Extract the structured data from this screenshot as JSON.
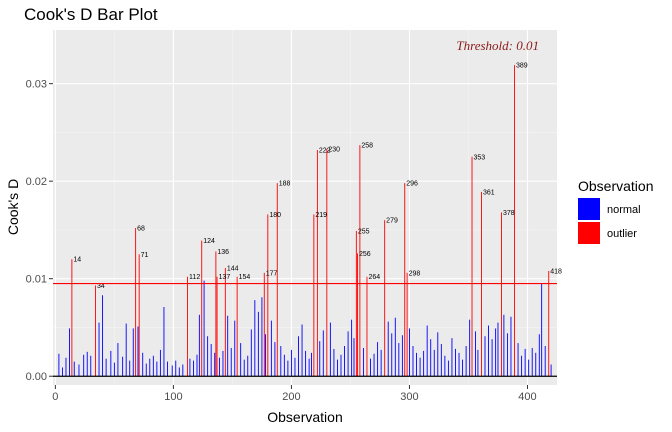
{
  "chart_data": {
    "type": "bar",
    "title": "Cook's D Bar Plot",
    "xlabel": "Observation",
    "ylabel": "Cook's D",
    "xlim": [
      -2,
      425
    ],
    "ylim": [
      -0.0009,
      0.0355
    ],
    "x_ticks": [
      0,
      100,
      200,
      300,
      400
    ],
    "y_ticks": [
      0.0,
      0.01,
      0.02,
      0.03
    ],
    "y_tick_labels": [
      "0.00",
      "0.01",
      "0.02",
      "0.03"
    ],
    "grid": true,
    "threshold": {
      "value": 0.0095,
      "label": "Threshold: 0.01",
      "color": "#ff0000",
      "label_color": "#8b1a1a"
    },
    "legend": {
      "title": "Observation",
      "position": "right",
      "entries": [
        {
          "name": "normal",
          "color": "#0000ff"
        },
        {
          "name": "outlier",
          "color": "#ff0000"
        }
      ]
    },
    "series": [
      {
        "name": "outlier",
        "points": [
          {
            "x": 14,
            "y": 0.012,
            "label": "14"
          },
          {
            "x": 34,
            "y": 0.0093,
            "label": "34"
          },
          {
            "x": 68,
            "y": 0.0152,
            "label": "68"
          },
          {
            "x": 71,
            "y": 0.0125,
            "label": "71"
          },
          {
            "x": 112,
            "y": 0.0102,
            "label": "112"
          },
          {
            "x": 124,
            "y": 0.0139,
            "label": "124"
          },
          {
            "x": 136,
            "y": 0.0128,
            "label": "136"
          },
          {
            "x": 137,
            "y": 0.0102,
            "label": "137"
          },
          {
            "x": 144,
            "y": 0.0111,
            "label": "144"
          },
          {
            "x": 154,
            "y": 0.0102,
            "label": "154"
          },
          {
            "x": 177,
            "y": 0.0106,
            "label": "177"
          },
          {
            "x": 180,
            "y": 0.0166,
            "label": "180"
          },
          {
            "x": 188,
            "y": 0.0198,
            "label": "188"
          },
          {
            "x": 219,
            "y": 0.0166,
            "label": "219"
          },
          {
            "x": 222,
            "y": 0.0232,
            "label": "222"
          },
          {
            "x": 230,
            "y": 0.0233,
            "label": "230"
          },
          {
            "x": 255,
            "y": 0.0149,
            "label": "255"
          },
          {
            "x": 256,
            "y": 0.0126,
            "label": "256"
          },
          {
            "x": 258,
            "y": 0.0237,
            "label": "258"
          },
          {
            "x": 264,
            "y": 0.0102,
            "label": "264"
          },
          {
            "x": 279,
            "y": 0.016,
            "label": "279"
          },
          {
            "x": 296,
            "y": 0.0198,
            "label": "296"
          },
          {
            "x": 298,
            "y": 0.0106,
            "label": "298"
          },
          {
            "x": 353,
            "y": 0.0225,
            "label": "353"
          },
          {
            "x": 361,
            "y": 0.0189,
            "label": "361"
          },
          {
            "x": 378,
            "y": 0.0168,
            "label": "378"
          },
          {
            "x": 389,
            "y": 0.0319,
            "label": "389"
          },
          {
            "x": 418,
            "y": 0.0108,
            "label": "418"
          }
        ]
      },
      {
        "name": "normal",
        "points": [
          {
            "x": 3,
            "y": 0.0023
          },
          {
            "x": 6,
            "y": 0.0009
          },
          {
            "x": 9,
            "y": 0.0019
          },
          {
            "x": 12,
            "y": 0.0049
          },
          {
            "x": 16,
            "y": 0.0015
          },
          {
            "x": 20,
            "y": 0.0012
          },
          {
            "x": 24,
            "y": 0.0022
          },
          {
            "x": 27,
            "y": 0.0025
          },
          {
            "x": 30,
            "y": 0.0021
          },
          {
            "x": 37,
            "y": 0.0055
          },
          {
            "x": 40,
            "y": 0.0083
          },
          {
            "x": 43,
            "y": 0.0018
          },
          {
            "x": 47,
            "y": 0.0026
          },
          {
            "x": 50,
            "y": 0.0014
          },
          {
            "x": 53,
            "y": 0.0034
          },
          {
            "x": 57,
            "y": 0.002
          },
          {
            "x": 60,
            "y": 0.0054
          },
          {
            "x": 63,
            "y": 0.0016
          },
          {
            "x": 66,
            "y": 0.0049
          },
          {
            "x": 70,
            "y": 0.0051
          },
          {
            "x": 74,
            "y": 0.0024
          },
          {
            "x": 77,
            "y": 0.0013
          },
          {
            "x": 80,
            "y": 0.0018
          },
          {
            "x": 83,
            "y": 0.0021
          },
          {
            "x": 86,
            "y": 0.0015
          },
          {
            "x": 89,
            "y": 0.0027
          },
          {
            "x": 92,
            "y": 0.0071
          },
          {
            "x": 95,
            "y": 0.0015
          },
          {
            "x": 99,
            "y": 0.0011
          },
          {
            "x": 102,
            "y": 0.0016
          },
          {
            "x": 105,
            "y": 0.0009
          },
          {
            "x": 108,
            "y": 0.0012
          },
          {
            "x": 114,
            "y": 0.0018
          },
          {
            "x": 117,
            "y": 0.0016
          },
          {
            "x": 120,
            "y": 0.0022
          },
          {
            "x": 122,
            "y": 0.0063
          },
          {
            "x": 126,
            "y": 0.0098
          },
          {
            "x": 129,
            "y": 0.0041
          },
          {
            "x": 132,
            "y": 0.0033
          },
          {
            "x": 135,
            "y": 0.0024
          },
          {
            "x": 139,
            "y": 0.0019
          },
          {
            "x": 142,
            "y": 0.0026
          },
          {
            "x": 146,
            "y": 0.0062
          },
          {
            "x": 149,
            "y": 0.0029
          },
          {
            "x": 152,
            "y": 0.0057
          },
          {
            "x": 157,
            "y": 0.0034
          },
          {
            "x": 160,
            "y": 0.0017
          },
          {
            "x": 163,
            "y": 0.0021
          },
          {
            "x": 166,
            "y": 0.0048
          },
          {
            "x": 169,
            "y": 0.0078
          },
          {
            "x": 172,
            "y": 0.0066
          },
          {
            "x": 175,
            "y": 0.0081
          },
          {
            "x": 178,
            "y": 0.0043
          },
          {
            "x": 183,
            "y": 0.0057
          },
          {
            "x": 186,
            "y": 0.0035
          },
          {
            "x": 191,
            "y": 0.0031
          },
          {
            "x": 194,
            "y": 0.0022
          },
          {
            "x": 197,
            "y": 0.0016
          },
          {
            "x": 200,
            "y": 0.0027
          },
          {
            "x": 203,
            "y": 0.0019
          },
          {
            "x": 206,
            "y": 0.0041
          },
          {
            "x": 209,
            "y": 0.0053
          },
          {
            "x": 212,
            "y": 0.0026
          },
          {
            "x": 215,
            "y": 0.0018
          },
          {
            "x": 217,
            "y": 0.0024
          },
          {
            "x": 224,
            "y": 0.0036
          },
          {
            "x": 227,
            "y": 0.0047
          },
          {
            "x": 233,
            "y": 0.0055
          },
          {
            "x": 236,
            "y": 0.0028
          },
          {
            "x": 239,
            "y": 0.0017
          },
          {
            "x": 242,
            "y": 0.0022
          },
          {
            "x": 245,
            "y": 0.0031
          },
          {
            "x": 248,
            "y": 0.0046
          },
          {
            "x": 251,
            "y": 0.0058
          },
          {
            "x": 253,
            "y": 0.0039
          },
          {
            "x": 261,
            "y": 0.0029
          },
          {
            "x": 267,
            "y": 0.0018
          },
          {
            "x": 270,
            "y": 0.0023
          },
          {
            "x": 273,
            "y": 0.0035
          },
          {
            "x": 276,
            "y": 0.0027
          },
          {
            "x": 282,
            "y": 0.0056
          },
          {
            "x": 285,
            "y": 0.0044
          },
          {
            "x": 288,
            "y": 0.006
          },
          {
            "x": 291,
            "y": 0.0034
          },
          {
            "x": 294,
            "y": 0.0042
          },
          {
            "x": 300,
            "y": 0.0049
          },
          {
            "x": 303,
            "y": 0.0031
          },
          {
            "x": 306,
            "y": 0.0024
          },
          {
            "x": 309,
            "y": 0.0019
          },
          {
            "x": 312,
            "y": 0.0026
          },
          {
            "x": 315,
            "y": 0.0052
          },
          {
            "x": 318,
            "y": 0.0038
          },
          {
            "x": 321,
            "y": 0.0027
          },
          {
            "x": 324,
            "y": 0.0045
          },
          {
            "x": 327,
            "y": 0.0033
          },
          {
            "x": 330,
            "y": 0.0021
          },
          {
            "x": 333,
            "y": 0.0016
          },
          {
            "x": 336,
            "y": 0.0039
          },
          {
            "x": 339,
            "y": 0.0028
          },
          {
            "x": 342,
            "y": 0.0024
          },
          {
            "x": 345,
            "y": 0.0017
          },
          {
            "x": 348,
            "y": 0.0031
          },
          {
            "x": 351,
            "y": 0.0058
          },
          {
            "x": 356,
            "y": 0.0046
          },
          {
            "x": 358,
            "y": 0.0027
          },
          {
            "x": 364,
            "y": 0.0041
          },
          {
            "x": 367,
            "y": 0.0052
          },
          {
            "x": 370,
            "y": 0.0038
          },
          {
            "x": 373,
            "y": 0.0049
          },
          {
            "x": 375,
            "y": 0.0055
          },
          {
            "x": 380,
            "y": 0.0063
          },
          {
            "x": 383,
            "y": 0.0044
          },
          {
            "x": 386,
            "y": 0.0061
          },
          {
            "x": 392,
            "y": 0.0034
          },
          {
            "x": 395,
            "y": 0.0021
          },
          {
            "x": 398,
            "y": 0.0028
          },
          {
            "x": 401,
            "y": 0.0017
          },
          {
            "x": 404,
            "y": 0.0029
          },
          {
            "x": 407,
            "y": 0.0024
          },
          {
            "x": 410,
            "y": 0.0043
          },
          {
            "x": 412,
            "y": 0.0095
          },
          {
            "x": 415,
            "y": 0.0031
          },
          {
            "x": 420,
            "y": 0.0012
          }
        ]
      }
    ]
  }
}
